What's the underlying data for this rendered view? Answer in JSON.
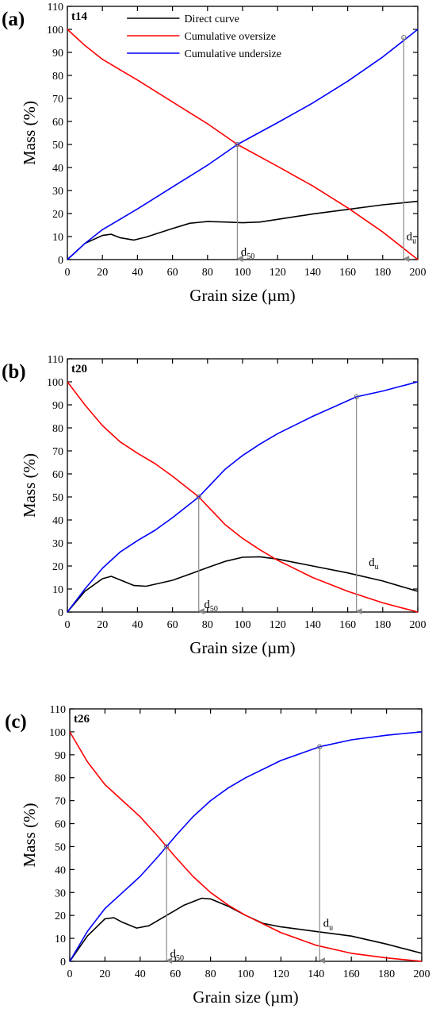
{
  "chart_data": [
    {
      "type": "line",
      "panel_label": "(a)",
      "sample_label": "t14",
      "xlabel": "Grain size (µm)",
      "ylabel": "Mass (%)",
      "xlim": [
        0,
        200
      ],
      "ylim": [
        0,
        110
      ],
      "xticks": [
        0,
        20,
        40,
        60,
        80,
        100,
        120,
        140,
        160,
        180,
        200
      ],
      "yticks": [
        0,
        10,
        20,
        30,
        40,
        50,
        60,
        70,
        80,
        90,
        100,
        110
      ],
      "legend": {
        "placement": "top-center",
        "entries": [
          "Direct curve",
          "Cumulative oversize",
          "Cumulative undersize"
        ]
      },
      "series": [
        {
          "name": "Direct curve",
          "color": "#000000",
          "x": [
            0,
            10,
            20,
            25,
            30,
            38,
            45,
            60,
            70,
            80,
            90,
            100,
            110,
            120,
            140,
            160,
            180,
            200
          ],
          "y": [
            0,
            7,
            10.5,
            11,
            9.5,
            8.5,
            9.8,
            13.5,
            15.8,
            16.5,
            16.3,
            16,
            16.3,
            17.5,
            19.8,
            21.8,
            23.8,
            25.3
          ]
        },
        {
          "name": "Cumulative oversize",
          "color": "#ff0000",
          "x": [
            0,
            10,
            20,
            30,
            40,
            60,
            80,
            97,
            120,
            140,
            160,
            180,
            200
          ],
          "y": [
            100,
            93,
            87,
            82.5,
            78,
            68.5,
            59,
            50,
            40.5,
            32,
            22.5,
            12,
            0
          ]
        },
        {
          "name": "Cumulative undersize",
          "color": "#0000ff",
          "x": [
            0,
            10,
            20,
            30,
            40,
            60,
            80,
            97,
            120,
            140,
            160,
            180,
            200
          ],
          "y": [
            0,
            7,
            13,
            17.5,
            22,
            31.5,
            41,
            50,
            59.5,
            68,
            77.5,
            88,
            100
          ]
        }
      ],
      "markers": [
        {
          "x": 97,
          "y": 50,
          "label": "d",
          "sub": "50",
          "label_x": 99,
          "label_y": 1.8
        },
        {
          "x": 192,
          "y": 96.5,
          "label": "d",
          "sub": "u",
          "label_x": 193.5,
          "label_y": 8.5
        }
      ]
    },
    {
      "type": "line",
      "panel_label": "(b)",
      "sample_label": "t20",
      "xlabel": "Grain size (µm)",
      "ylabel": "Mass (%)",
      "xlim": [
        0,
        200
      ],
      "ylim": [
        0,
        110
      ],
      "xticks": [
        0,
        20,
        40,
        60,
        80,
        100,
        120,
        140,
        160,
        180,
        200
      ],
      "yticks": [
        0,
        10,
        20,
        30,
        40,
        50,
        60,
        70,
        80,
        90,
        100,
        110
      ],
      "series": [
        {
          "name": "Direct curve",
          "color": "#000000",
          "x": [
            0,
            10,
            20,
            25,
            30,
            38,
            45,
            60,
            70,
            80,
            90,
            100,
            110,
            120,
            140,
            160,
            180,
            200
          ],
          "y": [
            0,
            9,
            14.5,
            15.5,
            14,
            11.5,
            11.2,
            13.8,
            16.5,
            19.3,
            22,
            23.8,
            24,
            23,
            20,
            17,
            13.5,
            9
          ]
        },
        {
          "name": "Cumulative oversize",
          "color": "#ff0000",
          "x": [
            0,
            10,
            20,
            30,
            40,
            50,
            60,
            70,
            75,
            80,
            90,
            100,
            110,
            120,
            140,
            160,
            180,
            200
          ],
          "y": [
            100,
            90,
            81,
            74,
            69,
            64.5,
            59,
            53,
            50,
            46,
            38,
            32,
            27,
            22.5,
            15,
            9,
            4,
            0
          ]
        },
        {
          "name": "Cumulative undersize",
          "color": "#0000ff",
          "x": [
            0,
            10,
            20,
            30,
            40,
            50,
            60,
            70,
            75,
            80,
            90,
            100,
            110,
            120,
            140,
            165,
            180,
            200
          ],
          "y": [
            0,
            10,
            19,
            26,
            31,
            35.5,
            41,
            47,
            50,
            54,
            62,
            68,
            73,
            77.5,
            85,
            93.5,
            96,
            100
          ]
        }
      ],
      "markers": [
        {
          "x": 75,
          "y": 50,
          "label": "d",
          "sub": "50",
          "label_x": 78,
          "label_y": 1.8
        },
        {
          "x": 165,
          "y": 93.5,
          "label": "d",
          "sub": "u",
          "label_x": 172,
          "label_y": 20
        }
      ]
    },
    {
      "type": "line",
      "panel_label": "(c)",
      "sample_label": "t26",
      "xlabel": "Grain size (µm)",
      "ylabel": "Mass (%)",
      "xlim": [
        0,
        200
      ],
      "ylim": [
        0,
        110
      ],
      "xticks": [
        0,
        20,
        40,
        60,
        80,
        100,
        120,
        140,
        160,
        180,
        200
      ],
      "yticks": [
        0,
        10,
        20,
        30,
        40,
        50,
        60,
        70,
        80,
        90,
        100,
        110
      ],
      "series": [
        {
          "name": "Direct curve",
          "color": "#000000",
          "x": [
            0,
            10,
            20,
            25,
            30,
            38,
            45,
            55,
            65,
            75,
            80,
            90,
            100,
            110,
            120,
            140,
            160,
            180,
            200
          ],
          "y": [
            0,
            11,
            18.5,
            19,
            17,
            14.5,
            15.5,
            20,
            24.5,
            27.5,
            27.2,
            24,
            20,
            16.5,
            15,
            13,
            11,
            7.5,
            3.5
          ]
        },
        {
          "name": "Cumulative oversize",
          "color": "#ff0000",
          "x": [
            0,
            10,
            20,
            30,
            40,
            50,
            55,
            60,
            70,
            80,
            90,
            100,
            120,
            140,
            160,
            180,
            200
          ],
          "y": [
            100,
            87,
            77,
            70,
            63,
            54.5,
            50,
            45.5,
            37,
            30,
            24.5,
            20,
            12.5,
            7,
            3.5,
            1.5,
            0
          ]
        },
        {
          "name": "Cumulative undersize",
          "color": "#0000ff",
          "x": [
            0,
            10,
            20,
            30,
            40,
            50,
            55,
            60,
            70,
            80,
            90,
            100,
            120,
            142,
            160,
            180,
            200
          ],
          "y": [
            0,
            13,
            23,
            30,
            37,
            45.5,
            50,
            54.5,
            63,
            70,
            75.5,
            80,
            87.5,
            93.5,
            96.5,
            98.5,
            100
          ]
        }
      ],
      "markers": [
        {
          "x": 55,
          "y": 50,
          "label": "d",
          "sub": "50",
          "label_x": 57,
          "label_y": 1.8
        },
        {
          "x": 142,
          "y": 93.5,
          "label": "d",
          "sub": "u",
          "label_x": 144,
          "label_y": 15
        }
      ]
    }
  ]
}
